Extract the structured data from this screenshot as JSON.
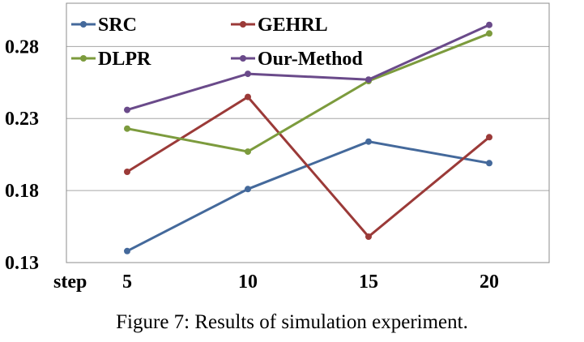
{
  "chart_data": {
    "type": "line",
    "xlabel": "step",
    "x": [
      5,
      10,
      15,
      20
    ],
    "x_tick_labels": [
      "5",
      "10",
      "15",
      "20"
    ],
    "ylim": [
      0.13,
      0.31
    ],
    "y_ticks": [
      0.13,
      0.18,
      0.23,
      0.28
    ],
    "y_tick_labels": [
      "0.13",
      "0.18",
      "0.23",
      "0.28"
    ],
    "grid": "horizontal",
    "legend": "top",
    "series": [
      {
        "name": "SRC",
        "color": "#44699b",
        "values": [
          0.138,
          0.181,
          0.214,
          0.199
        ]
      },
      {
        "name": "GEHRL",
        "color": "#9b3a38",
        "values": [
          0.193,
          0.245,
          0.148,
          0.217
        ]
      },
      {
        "name": "DLPR",
        "color": "#7c9b3d",
        "values": [
          0.223,
          0.207,
          0.256,
          0.289
        ]
      },
      {
        "name": "Our-Method",
        "color": "#6a4a8a",
        "values": [
          0.236,
          0.261,
          0.257,
          0.295
        ]
      }
    ]
  },
  "caption": "Figure 7: Results of simulation experiment."
}
